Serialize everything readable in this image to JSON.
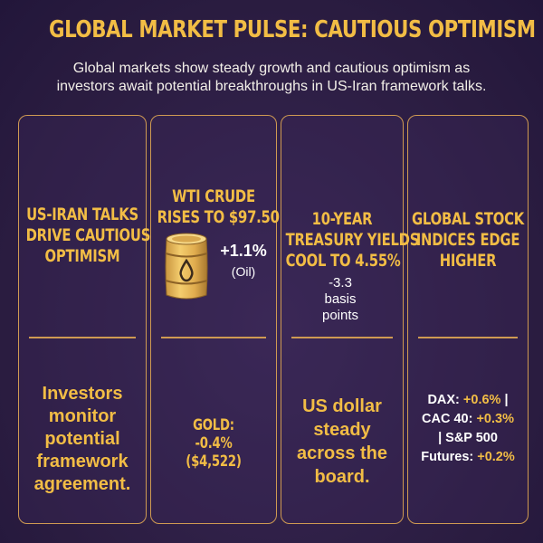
{
  "title": "GLOBAL MARKET PULSE: CAUTIOUS OPTIMISM",
  "subtitle_lines": [
    "Global markets show steady growth and cautious optimism as",
    "investors await potential breakthroughs in US-Iran framework talks."
  ],
  "colors": {
    "accent": "#f2bd45",
    "border": "#cf9a52",
    "background": "#2d1f45"
  },
  "col1": {
    "heading_lines": [
      "US-IRAN TALKS",
      "DRIVE CAUTIOUS",
      "OPTIMISM"
    ],
    "body_lines": [
      "Investors",
      "monitor",
      "potential",
      "framework",
      "agreement."
    ]
  },
  "col2": {
    "heading_lines": [
      "WTI CRUDE",
      "RISES TO $97.50"
    ],
    "icon": "oil-barrel-icon",
    "change": "+1.1%",
    "change_note": "(Oil)",
    "gold_lines": [
      "GOLD:",
      "-0.4%",
      "($4,522)"
    ]
  },
  "col3": {
    "heading_lines": [
      "10-YEAR",
      "TREASURY YIELDS",
      "COOL TO 4.55%"
    ],
    "change_lines": [
      "-3.3",
      "basis",
      "points"
    ],
    "body_lines": [
      "US dollar",
      "steady",
      "across the",
      "board."
    ]
  },
  "col4": {
    "heading_lines": [
      "GLOBAL STOCK",
      "INDICES EDGE",
      "HIGHER"
    ],
    "stocks": [
      {
        "label": "DAX: ",
        "value": "+0.6%",
        "tail": " |"
      },
      {
        "label": "CAC 40: ",
        "value": "+0.3%",
        "tail": ""
      },
      {
        "label": "| S&P 500",
        "value": "",
        "tail": ""
      },
      {
        "label": "Futures: ",
        "value": "+0.2%",
        "tail": ""
      }
    ]
  }
}
